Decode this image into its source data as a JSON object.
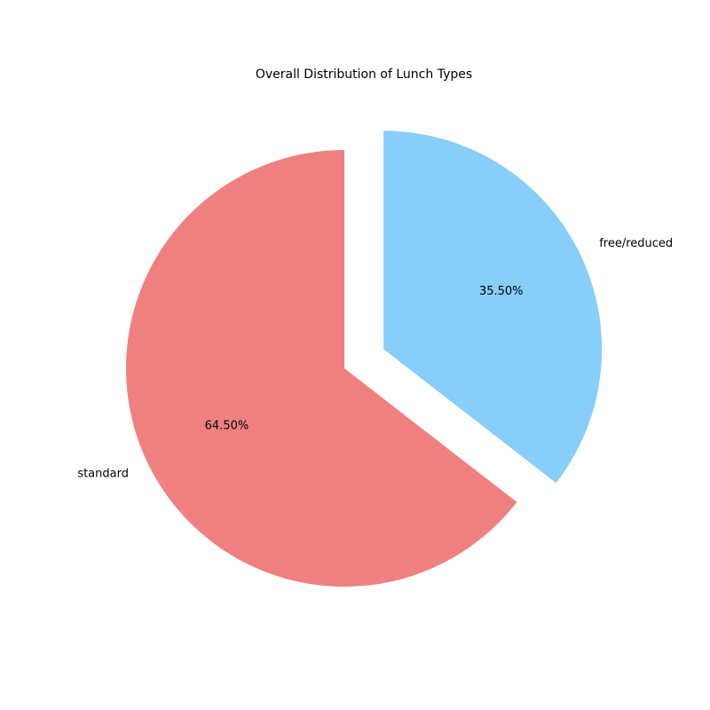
{
  "chart_data": {
    "type": "pie",
    "title": "Overall Distribution of Lunch Types",
    "slices": [
      {
        "label": "standard",
        "value": 64.5,
        "pct_label": "64.50%",
        "color": "#f08080",
        "exploded": false
      },
      {
        "label": "free/reduced",
        "value": 35.5,
        "pct_label": "35.50%",
        "color": "#87cefa",
        "exploded": true
      }
    ],
    "start_angle_deg": 90,
    "direction": "counterclockwise"
  }
}
